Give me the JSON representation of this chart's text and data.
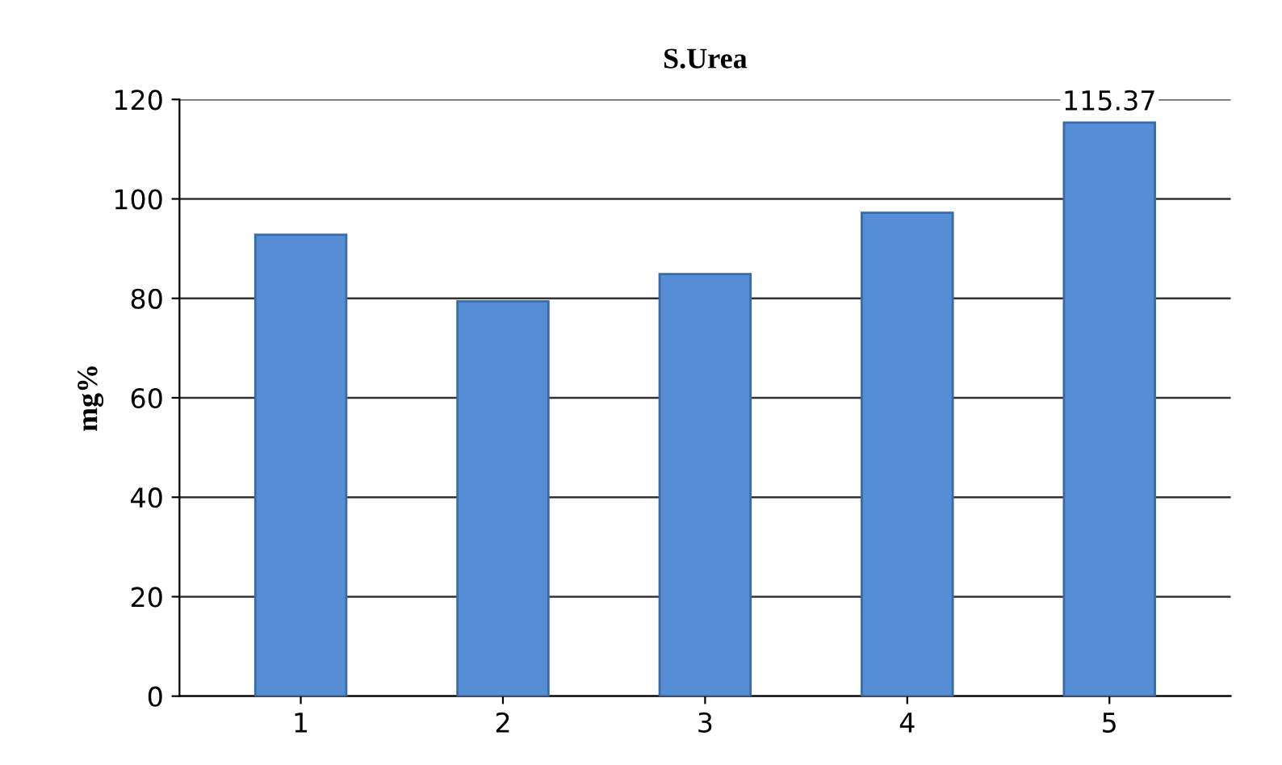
{
  "chart_data": {
    "type": "bar",
    "title": "S.Urea",
    "ylabel": "mg%",
    "categories": [
      "1",
      "2",
      "3",
      "4",
      "5"
    ],
    "values": [
      92.8,
      79.4,
      84.9,
      97.2,
      115.37
    ],
    "value_labels": [
      null,
      null,
      null,
      null,
      "115.37"
    ],
    "color": "#558ed5",
    "ylim": [
      0,
      120
    ],
    "yticks": [
      0,
      20,
      40,
      60,
      80,
      100,
      120
    ],
    "grid": "y"
  }
}
